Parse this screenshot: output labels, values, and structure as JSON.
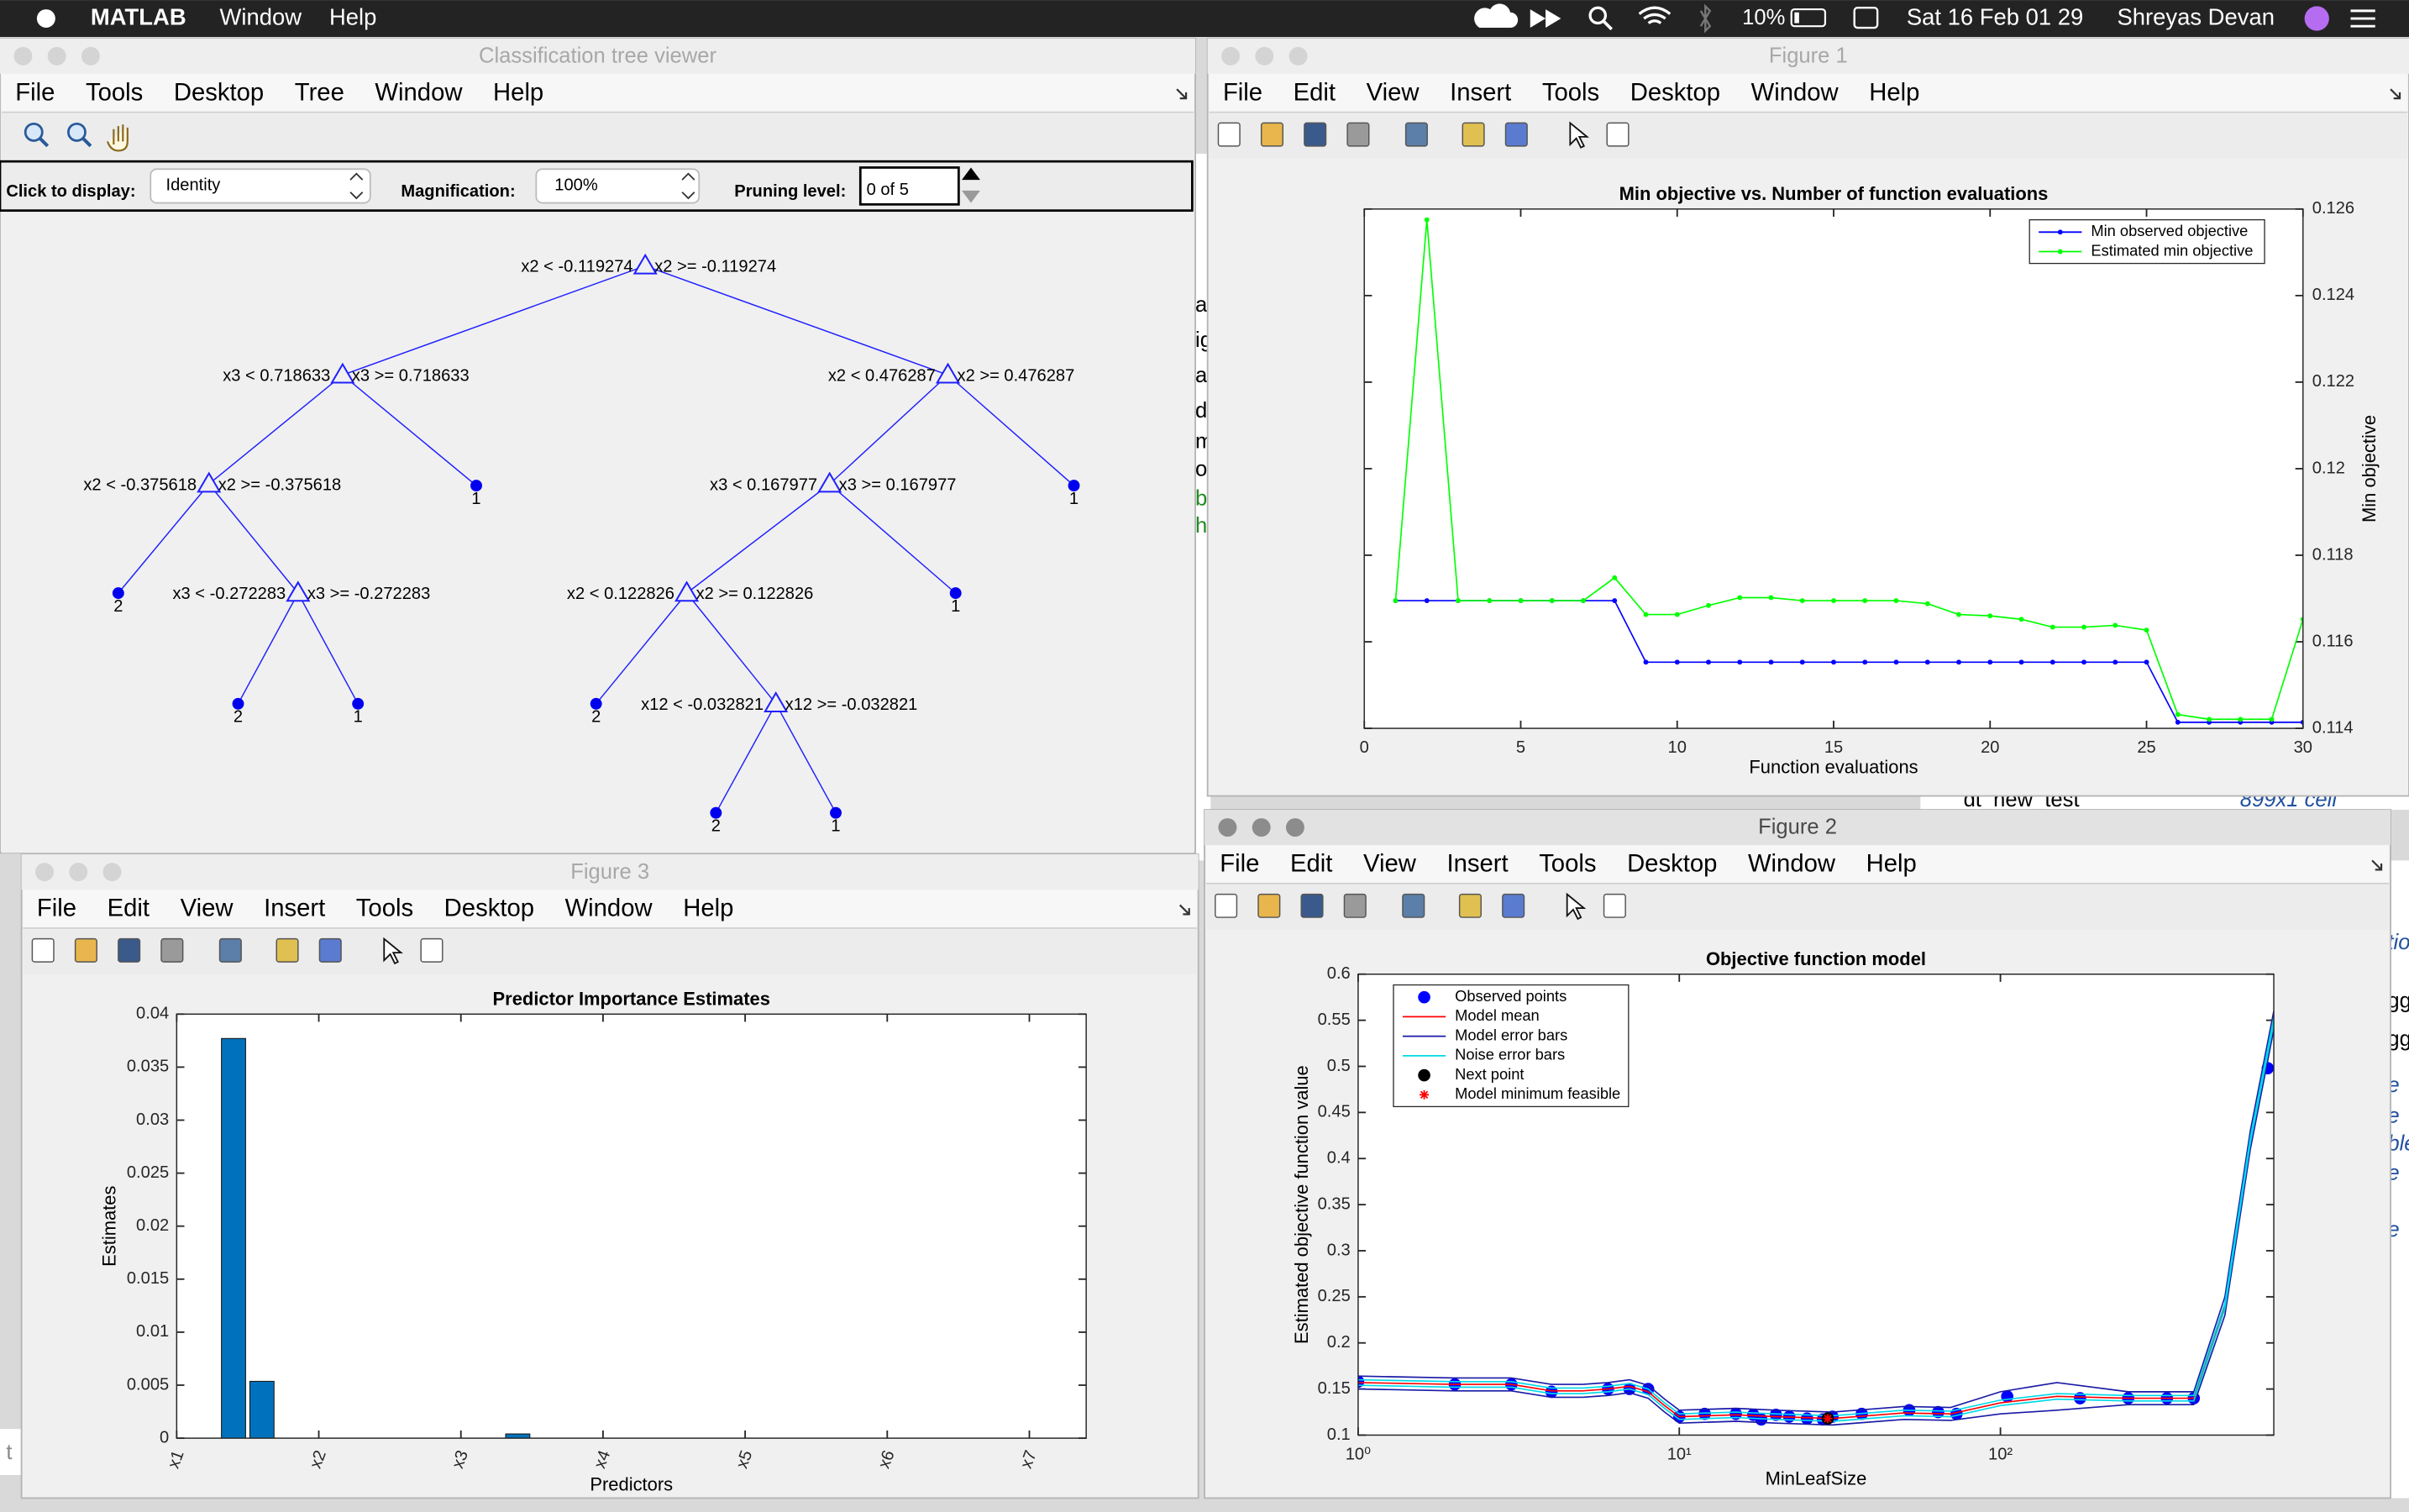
{
  "menubar": {
    "app": "MATLAB",
    "menus": [
      "Window",
      "Help"
    ],
    "battery": "10%",
    "datetime": "Sat 16 Feb 01 29",
    "user": "Shreyas Devan"
  },
  "background_text": [
    "ai",
    "ig",
    "ac",
    "d",
    "m",
    "o",
    "b",
    "h",
    "dt_new_test",
    "899x1 cell",
    "tio",
    "gg",
    "gg",
    "e",
    "e",
    "ble",
    "e",
    "e",
    "t"
  ],
  "windows": [
    {
      "title": "Classification tree viewer",
      "menus": [
        "File",
        "Tools",
        "Desktop",
        "Tree",
        "Window",
        "Help"
      ]
    },
    {
      "title": "Figure 1",
      "menus": [
        "File",
        "Edit",
        "View",
        "Insert",
        "Tools",
        "Desktop",
        "Window",
        "Help"
      ]
    },
    {
      "title": "Figure 2",
      "menus": [
        "File",
        "Edit",
        "View",
        "Insert",
        "Tools",
        "Desktop",
        "Window",
        "Help"
      ]
    },
    {
      "title": "Figure 3",
      "menus": [
        "File",
        "Edit",
        "View",
        "Insert",
        "Tools",
        "Desktop",
        "Window",
        "Help"
      ]
    }
  ],
  "tree": {
    "controls": {
      "display_label": "Click to display:",
      "display_value": "Identity",
      "magnification_label": "Magnification:",
      "magnification_value": "100%",
      "pruning_label": "Pruning level:",
      "pruning_value": "0 of 5"
    },
    "nodes": [
      {
        "rule_left": "x2 < -0.119274",
        "rule_right": "x2 >= -0.119274"
      },
      {
        "rule_left": "x3 < 0.718633",
        "rule_right": "x3 >= 0.718633"
      },
      {
        "rule_left": "x2 < 0.476287",
        "rule_right": "x2 >= 0.476287"
      },
      {
        "rule_left": "x2 < -0.375618",
        "rule_right": "x2 >= -0.375618"
      },
      {
        "class": "1"
      },
      {
        "rule_left": "x3 < 0.167977",
        "rule_right": "x3 >= 0.167977"
      },
      {
        "class": "1"
      },
      {
        "class": "2"
      },
      {
        "rule_left": "x3 < -0.272283",
        "rule_right": "x3 >= -0.272283"
      },
      {
        "rule_left": "x2 < 0.122826",
        "rule_right": "x2 >= 0.122826"
      },
      {
        "class": "1"
      },
      {
        "class": "2"
      },
      {
        "class": "1"
      },
      {
        "class": "2"
      },
      {
        "rule_left": "x12 < -0.032821",
        "rule_right": "x12 >= -0.032821"
      },
      {
        "class": "2"
      },
      {
        "class": "1"
      }
    ]
  },
  "chart_data": [
    {
      "type": "line",
      "title": "Min objective vs. Number of function evaluations",
      "xlabel": "Function evaluations",
      "ylabel": "Min objective",
      "x": [
        1,
        2,
        3,
        4,
        5,
        6,
        7,
        8,
        9,
        10,
        11,
        12,
        13,
        14,
        15,
        16,
        17,
        18,
        19,
        20,
        21,
        22,
        23,
        24,
        25,
        26,
        27,
        28,
        29,
        30
      ],
      "series": [
        {
          "name": "Min observed objective",
          "color": "#0000ff",
          "line": "-",
          "marker": ".",
          "values": [
            0.11695,
            0.11695,
            0.11695,
            0.11695,
            0.11695,
            0.11695,
            0.11695,
            0.11695,
            0.11553,
            0.11553,
            0.11553,
            0.11553,
            0.11553,
            0.11553,
            0.11553,
            0.11553,
            0.11553,
            0.11553,
            0.11553,
            0.11553,
            0.11553,
            0.11553,
            0.11553,
            0.11553,
            0.11553,
            0.11414,
            0.11414,
            0.11414,
            0.11414,
            0.11414
          ]
        },
        {
          "name": "Estimated min objective",
          "color": "#00ff00",
          "line": "-",
          "marker": ".",
          "values": [
            0.11695,
            0.12575,
            0.11695,
            0.11695,
            0.11695,
            0.11695,
            0.11695,
            0.11748,
            0.11663,
            0.11663,
            0.11684,
            0.11702,
            0.11702,
            0.11695,
            0.11695,
            0.11695,
            0.11695,
            0.11688,
            0.11663,
            0.1166,
            0.11652,
            0.11634,
            0.11634,
            0.11638,
            0.11627,
            0.11432,
            0.11421,
            0.11421,
            0.11421,
            0.11652
          ]
        }
      ],
      "xlim": [
        0,
        30
      ],
      "ylim": [
        0.114,
        0.126
      ],
      "xticks": [
        0,
        5,
        10,
        15,
        20,
        25,
        30
      ],
      "yticks": [
        0.114,
        0.116,
        0.118,
        0.12,
        0.122,
        0.124,
        0.126
      ],
      "yaxis_location": "right",
      "legend": "northeast",
      "grid": false
    },
    {
      "type": "line",
      "title": "Objective function model",
      "xlabel": "MinLeafSize",
      "ylabel": "Estimated objective function value",
      "xscale": "log",
      "xlim": [
        1,
        710
      ],
      "ylim": [
        0.1,
        0.6
      ],
      "xticks": [
        {
          "value": 1,
          "label": "10⁰"
        },
        {
          "value": 10,
          "label": "10¹"
        },
        {
          "value": 100,
          "label": "10²"
        }
      ],
      "yticks": [
        0.1,
        0.15,
        0.2,
        0.25,
        0.3,
        0.35,
        0.4,
        0.45,
        0.5,
        0.55,
        0.6
      ],
      "legend": "northwest",
      "grid": false,
      "yaxis_location": "left",
      "series": [
        {
          "name": "Observed points",
          "color": "#0000ff",
          "marker": "o",
          "x": [
            1,
            2,
            3,
            4,
            6,
            7,
            8,
            10,
            12,
            15,
            17,
            18,
            20,
            22,
            25,
            28,
            30,
            37,
            52,
            64,
            73,
            105,
            177,
            250,
            330,
            400,
            680
          ],
          "values": [
            0.158,
            0.155,
            0.155,
            0.147,
            0.15,
            0.15,
            0.15,
            0.12,
            0.123,
            0.123,
            0.122,
            0.117,
            0.122,
            0.12,
            0.118,
            0.117,
            0.12,
            0.123,
            0.127,
            0.125,
            0.123,
            0.142,
            0.14,
            0.14,
            0.14,
            0.14,
            0.498
          ]
        },
        {
          "name": "Model mean",
          "color": "#ff0000",
          "line": "-",
          "x": [
            1,
            2,
            3,
            4,
            5,
            6,
            7,
            8,
            9,
            10,
            15,
            20,
            30,
            50,
            70,
            100,
            150,
            250,
            400,
            500,
            600,
            710
          ],
          "values": [
            0.157,
            0.155,
            0.155,
            0.148,
            0.148,
            0.15,
            0.153,
            0.147,
            0.132,
            0.12,
            0.122,
            0.12,
            0.118,
            0.124,
            0.123,
            0.135,
            0.142,
            0.14,
            0.14,
            0.24,
            0.42,
            0.55
          ]
        },
        {
          "name": "Model error bars",
          "color": "#1a1aa6",
          "line": "-",
          "x": [
            1,
            2,
            3,
            4,
            5,
            6,
            7,
            8,
            9,
            10,
            15,
            20,
            30,
            50,
            70,
            100,
            150,
            250,
            400,
            500,
            600,
            710
          ],
          "upper": [
            0.164,
            0.162,
            0.162,
            0.155,
            0.155,
            0.157,
            0.16,
            0.154,
            0.139,
            0.127,
            0.129,
            0.127,
            0.125,
            0.131,
            0.13,
            0.147,
            0.157,
            0.147,
            0.147,
            0.25,
            0.43,
            0.56
          ],
          "lower": [
            0.15,
            0.148,
            0.148,
            0.141,
            0.141,
            0.143,
            0.146,
            0.14,
            0.125,
            0.113,
            0.115,
            0.113,
            0.111,
            0.117,
            0.116,
            0.123,
            0.127,
            0.133,
            0.133,
            0.23,
            0.41,
            0.54
          ]
        },
        {
          "name": "Noise error bars",
          "color": "#00d8e8",
          "line": "-",
          "x": [
            1,
            2,
            3,
            4,
            5,
            6,
            7,
            8,
            9,
            10,
            15,
            20,
            30,
            50,
            70,
            100,
            150,
            250,
            400,
            500,
            600,
            710
          ],
          "upper": [
            0.16,
            0.158,
            0.158,
            0.151,
            0.151,
            0.153,
            0.156,
            0.15,
            0.135,
            0.123,
            0.125,
            0.123,
            0.121,
            0.127,
            0.126,
            0.138,
            0.145,
            0.143,
            0.143,
            0.243,
            0.423,
            0.553
          ],
          "lower": [
            0.154,
            0.152,
            0.152,
            0.145,
            0.145,
            0.147,
            0.15,
            0.144,
            0.129,
            0.117,
            0.119,
            0.117,
            0.115,
            0.121,
            0.12,
            0.132,
            0.139,
            0.137,
            0.137,
            0.237,
            0.417,
            0.547
          ]
        },
        {
          "name": "Next point",
          "color": "#000000",
          "marker": "o",
          "x": [
            29
          ],
          "values": [
            0.118
          ]
        },
        {
          "name": "Model minimum feasible",
          "color": "#ff0000",
          "marker": "*",
          "x": [
            29
          ],
          "values": [
            0.118
          ]
        }
      ]
    },
    {
      "type": "bar",
      "title": "Predictor Importance Estimates",
      "xlabel": "Predictors",
      "ylabel": "Estimates",
      "x": [
        2,
        3,
        12
      ],
      "values": [
        0.0377,
        0.00536,
        0.0004
      ],
      "color": "#0072bd",
      "xlim": [
        0,
        32
      ],
      "ylim": [
        0,
        0.04
      ],
      "xticks": [
        {
          "value": 0,
          "label": "x1"
        },
        {
          "value": 5,
          "label": "x2"
        },
        {
          "value": 10,
          "label": "x3"
        },
        {
          "value": 15,
          "label": "x4"
        },
        {
          "value": 20,
          "label": "x5"
        },
        {
          "value": 25,
          "label": "x6"
        },
        {
          "value": 30,
          "label": "x7"
        }
      ],
      "yticks": [
        0,
        0.005,
        0.01,
        0.015,
        0.02,
        0.025,
        0.03,
        0.035,
        0.04
      ],
      "grid": false,
      "yaxis_location": "left"
    }
  ]
}
